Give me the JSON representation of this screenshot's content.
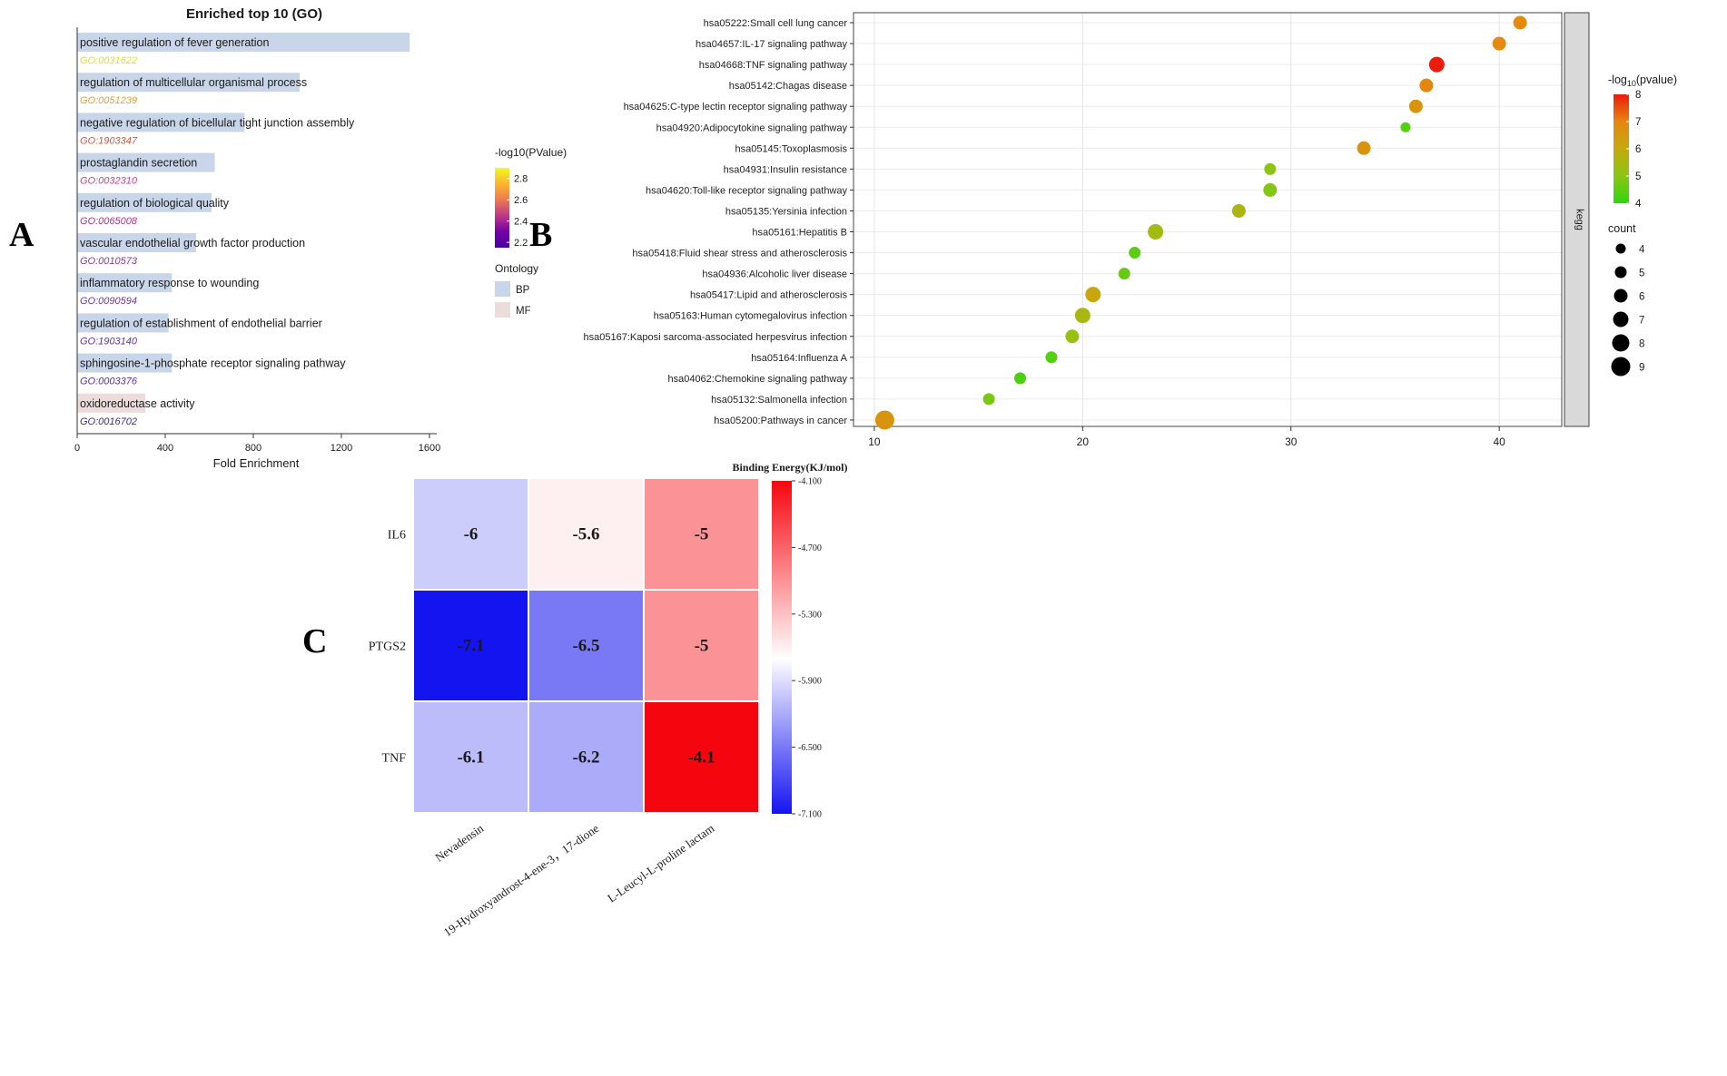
{
  "labels": {
    "a": "A",
    "b": "B",
    "c": "C"
  },
  "chart_data": [
    {
      "id": "go-enrichment",
      "type": "bar",
      "title": "Enriched top 10 (GO)",
      "xlabel": "Fold Enrichment",
      "xlim": [
        0,
        1600
      ],
      "xticks": [
        0,
        400,
        800,
        1200,
        1600
      ],
      "ontology_colors": {
        "BP": "#c9d6ea",
        "MF": "#eddcdc"
      },
      "legend_pvalue": {
        "title": "-log10(PValue)",
        "ticks": [
          2.8,
          2.6,
          2.4,
          2.2
        ],
        "domain": [
          2.9,
          2.15
        ],
        "gradient": [
          "#f0f921",
          "#fdb42f",
          "#ed7953",
          "#bd3786",
          "#7201a8",
          "#46039f"
        ]
      },
      "legend_ontology": {
        "title": "Ontology",
        "items": [
          {
            "label": "BP"
          },
          {
            "label": "MF"
          }
        ]
      },
      "bars": [
        {
          "term": "positive regulation of fever generation",
          "go_id": "GO:0031622",
          "fold_enrichment": 1510,
          "ontology": "BP",
          "id_color": "#e3e021"
        },
        {
          "term": "regulation of multicellular organismal process",
          "go_id": "GO:0051239",
          "fold_enrichment": 1010,
          "ontology": "BP",
          "id_color": "#f29c25"
        },
        {
          "term": "negative regulation of bicellular tight junction assembly",
          "go_id": "GO:1903347",
          "fold_enrichment": 760,
          "ontology": "BP",
          "id_color": "#e9512e"
        },
        {
          "term": "prostaglandin secretion",
          "go_id": "GO:0032310",
          "fold_enrichment": 625,
          "ontology": "BP",
          "id_color": "#d9388f"
        },
        {
          "term": "regulation of biological quality",
          "go_id": "GO:0065008",
          "fold_enrichment": 610,
          "ontology": "BP",
          "id_color": "#b92e90"
        },
        {
          "term": "vascular endothelial growth factor production",
          "go_id": "GO:0010573",
          "fold_enrichment": 540,
          "ontology": "BP",
          "id_color": "#8f35a5"
        },
        {
          "term": "inflammatory response to wounding",
          "go_id": "GO:0090594",
          "fold_enrichment": 430,
          "ontology": "BP",
          "id_color": "#7b2fad"
        },
        {
          "term": "regulation of establishment of endothelial barrier",
          "go_id": "GO:1903140",
          "fold_enrichment": 415,
          "ontology": "BP",
          "id_color": "#6b2ca9"
        },
        {
          "term": "sphingosine-1-phosphate receptor signaling pathway",
          "go_id": "GO:0003376",
          "fold_enrichment": 430,
          "ontology": "BP",
          "id_color": "#5e2ca8"
        },
        {
          "term": "oxidoreductase activity",
          "go_id": "GO:0016702",
          "fold_enrichment": 310,
          "ontology": "MF",
          "id_color": "#3d25a1"
        }
      ]
    },
    {
      "id": "kegg-enrichment",
      "type": "scatter",
      "facet_label": "kegg",
      "xlim": [
        9,
        43
      ],
      "xticks": [
        10,
        20,
        30,
        40
      ],
      "legend_pvalue": {
        "title": "-log10(pvalue)",
        "ticks": [
          8,
          7,
          6,
          5,
          4
        ]
      },
      "color_stops": [
        [
          4,
          "#2ed50f"
        ],
        [
          5,
          "#8cc514"
        ],
        [
          6,
          "#c3aa0e"
        ],
        [
          7,
          "#e6860f"
        ],
        [
          8,
          "#ec1c0c"
        ]
      ],
      "legend_count": {
        "title": "count",
        "sizes": [
          4,
          5,
          6,
          7,
          8,
          9
        ]
      },
      "points": [
        {
          "pathway": "hsa05222:Small cell lung cancer",
          "x": 41,
          "pvalue": 6.9,
          "count": 6
        },
        {
          "pathway": "hsa04657:IL-17 signaling pathway",
          "x": 40,
          "pvalue": 6.9,
          "count": 6
        },
        {
          "pathway": "hsa04668:TNF signaling pathway",
          "x": 37,
          "pvalue": 8.0,
          "count": 7
        },
        {
          "pathway": "hsa05142:Chagas disease",
          "x": 36.5,
          "pvalue": 7.0,
          "count": 6
        },
        {
          "pathway": "hsa04625:C-type lectin receptor signaling pathway",
          "x": 36,
          "pvalue": 6.6,
          "count": 6
        },
        {
          "pathway": "hsa04920:Adipocytokine signaling pathway",
          "x": 35.5,
          "pvalue": 4.4,
          "count": 4
        },
        {
          "pathway": "hsa05145:Toxoplasmosis",
          "x": 33.5,
          "pvalue": 6.6,
          "count": 6
        },
        {
          "pathway": "hsa04931:Insulin resistance",
          "x": 29,
          "pvalue": 5.0,
          "count": 5
        },
        {
          "pathway": "hsa04620:Toll-like receptor signaling pathway",
          "x": 29,
          "pvalue": 4.9,
          "count": 6
        },
        {
          "pathway": "hsa05135:Yersinia infection",
          "x": 27.5,
          "pvalue": 5.6,
          "count": 6
        },
        {
          "pathway": "hsa05161:Hepatitis B",
          "x": 23.5,
          "pvalue": 5.4,
          "count": 7
        },
        {
          "pathway": "hsa05418:Fluid shear stress and atherosclerosis",
          "x": 22.5,
          "pvalue": 4.5,
          "count": 5
        },
        {
          "pathway": "hsa04936:Alcoholic liver disease",
          "x": 22,
          "pvalue": 4.6,
          "count": 5
        },
        {
          "pathway": "hsa05417:Lipid and atherosclerosis",
          "x": 20.5,
          "pvalue": 6.1,
          "count": 7
        },
        {
          "pathway": "hsa05163:Human cytomegalovirus infection",
          "x": 20,
          "pvalue": 5.5,
          "count": 7
        },
        {
          "pathway": "hsa05167:Kaposi sarcoma-associated herpesvirus infection",
          "x": 19.5,
          "pvalue": 5.2,
          "count": 6
        },
        {
          "pathway": "hsa05164:Influenza A",
          "x": 18.5,
          "pvalue": 4.4,
          "count": 5
        },
        {
          "pathway": "hsa04062:Chemokine signaling pathway",
          "x": 17,
          "pvalue": 4.3,
          "count": 5
        },
        {
          "pathway": "hsa05132:Salmonella infection",
          "x": 15.5,
          "pvalue": 4.8,
          "count": 5
        },
        {
          "pathway": "hsa05200:Pathways in cancer",
          "x": 10.5,
          "pvalue": 6.6,
          "count": 9
        }
      ]
    },
    {
      "id": "binding-energy",
      "type": "heatmap",
      "colorbar_title": "Binding Energy(KJ/mol)",
      "rows": [
        "IL6",
        "PTGS2",
        "TNF"
      ],
      "columns": [
        "Nevadensin",
        "19-Hydroxyandrost-4-ene-3，17-dione",
        "L-Leucyl-L-proline lactam"
      ],
      "values": [
        [
          "-6",
          "-5.6",
          "-5"
        ],
        [
          "-7.1",
          "-6.5",
          "-5"
        ],
        [
          "-6.1",
          "-6.2",
          "-4.1"
        ]
      ],
      "scale": {
        "red_value": -4.1,
        "white_value": -5.7,
        "blue_value": -7.1,
        "red": "#f5060e",
        "white": "#ffffff",
        "blue": "#1414f0"
      },
      "colorbar_ticks": [
        "-4.100",
        "-4.700",
        "-5.300",
        "-5.900",
        "-6.500",
        "-7.100"
      ]
    }
  ]
}
